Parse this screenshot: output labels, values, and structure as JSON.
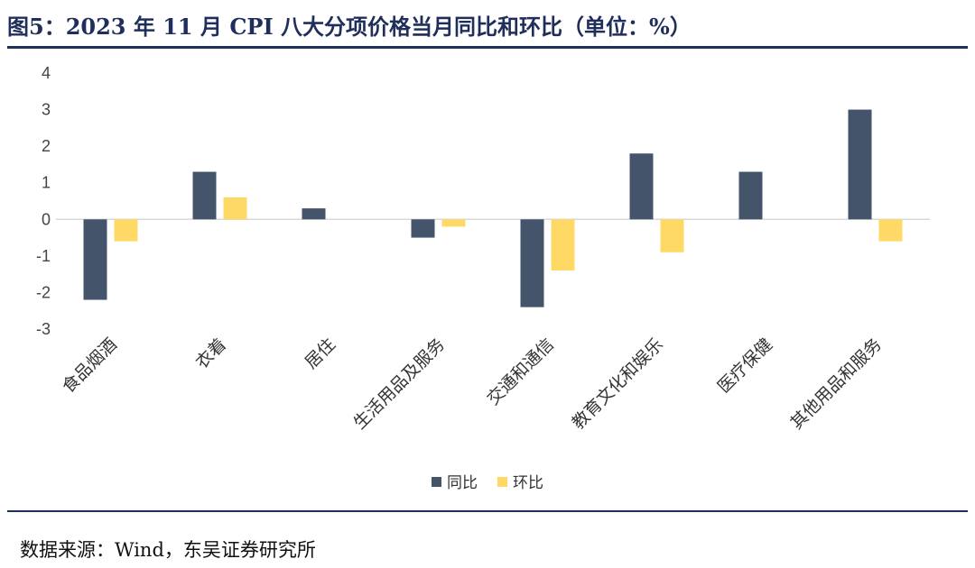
{
  "header": {
    "title": "图5：2023 年 11 月 CPI 八大分项价格当月同比和环比（单位：%）"
  },
  "footer": {
    "source": "数据来源：Wind，东吴证券研究所"
  },
  "colors": {
    "accent": "#1f2e5a",
    "series_yoy": "#44546a",
    "series_mom": "#ffd966",
    "axis": "#d9d9d9"
  },
  "chart_data": {
    "type": "bar",
    "categories": [
      "食品烟酒",
      "衣着",
      "居住",
      "生活用品及服务",
      "交通和通信",
      "教育文化和娱乐",
      "医疗保健",
      "其他用品和服务"
    ],
    "series": [
      {
        "name": "同比",
        "values": [
          -2.2,
          1.3,
          0.3,
          -0.5,
          -2.4,
          1.8,
          1.3,
          3.0
        ]
      },
      {
        "name": "环比",
        "values": [
          -0.6,
          0.6,
          0.0,
          -0.2,
          -1.4,
          -0.9,
          0.0,
          -0.6
        ]
      }
    ],
    "yticks": [
      "4",
      "3",
      "2",
      "1",
      "0",
      "-1",
      "-2",
      "-3"
    ],
    "ylim": [
      -3,
      4
    ],
    "grid": false,
    "legend": "bottom"
  }
}
